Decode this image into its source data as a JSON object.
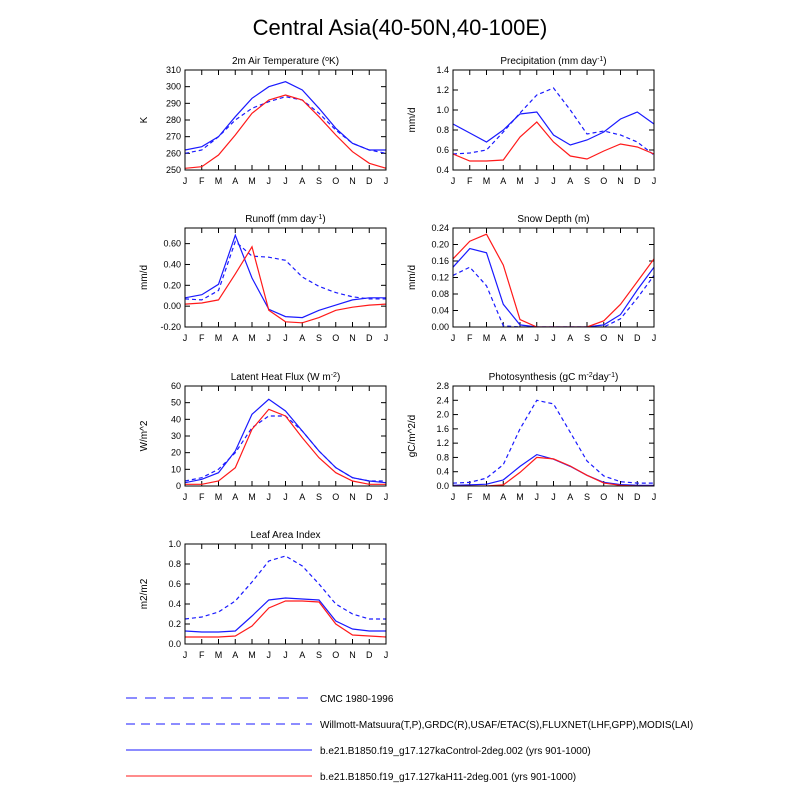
{
  "figure": {
    "title": "Central Asia(40-50N,40-100E)",
    "months": [
      "J",
      "F",
      "M",
      "A",
      "M",
      "J",
      "J",
      "A",
      "S",
      "O",
      "N",
      "D",
      "J"
    ]
  },
  "colors": {
    "blue": "#1a1aff",
    "red": "#ff1a1a",
    "dashed_blue": "#1a1aff"
  },
  "legend": [
    {
      "label": "CMC 1980-1996",
      "style": "dashed",
      "color": "#1a1aff"
    },
    {
      "label": "Willmott-Matsuura(T,P),GRDC(R),USAF/ETAC(S),FLUXNET(LHF,GPP),MODIS(LAI)",
      "style": "dashed",
      "color": "#1a1aff"
    },
    {
      "label": "b.e21.B1850.f19_g17.127kaControl-2deg.002 (yrs 901-1000)",
      "style": "solid",
      "color": "#1a1aff"
    },
    {
      "label": "b.e21.B1850.f19_g17.127kaH11-2deg.001 (yrs 901-1000)",
      "style": "solid",
      "color": "#ff1a1a"
    }
  ],
  "chart_data": [
    {
      "type": "line",
      "id": "temp",
      "title": "2m Air Temperature (°K)",
      "title_parts": {
        "pre": "2m Air Temperature (",
        "sup": "o",
        "post": "K)"
      },
      "ylabel": "K",
      "ylim": [
        250,
        310
      ],
      "yticks": [
        250,
        260,
        270,
        280,
        290,
        300,
        310
      ],
      "ytick_labels": [
        "250",
        "260",
        "270",
        "280",
        "290",
        "300",
        "310"
      ],
      "series": [
        {
          "name": "obs",
          "style": "dashed",
          "color": "#1a1aff",
          "values": [
            260,
            262,
            270,
            280,
            287,
            291,
            294,
            292,
            284,
            274,
            266,
            262,
            260
          ]
        },
        {
          "name": "control",
          "style": "solid",
          "color": "#1a1aff",
          "values": [
            262,
            264,
            270,
            282,
            293,
            300,
            303,
            298,
            287,
            275,
            266,
            262,
            262
          ]
        },
        {
          "name": "h11",
          "style": "solid",
          "color": "#ff1a1a",
          "values": [
            251,
            252,
            259,
            271,
            284,
            292,
            295,
            292,
            282,
            271,
            261,
            254,
            251
          ]
        }
      ]
    },
    {
      "type": "line",
      "id": "precip",
      "title": "Precipitation (mm day-1)",
      "title_parts": {
        "pre": "Precipitation (mm day",
        "sup": "-1",
        "post": ")"
      },
      "ylabel": "mm/d",
      "ylim": [
        0.4,
        1.4
      ],
      "yticks": [
        0.4,
        0.6,
        0.8,
        1.0,
        1.2,
        1.4
      ],
      "ytick_labels": [
        "0.4",
        "0.6",
        "0.8",
        "1.0",
        "1.2",
        "1.4"
      ],
      "series": [
        {
          "name": "obs",
          "style": "dashed",
          "color": "#1a1aff",
          "values": [
            0.56,
            0.57,
            0.6,
            0.78,
            0.97,
            1.15,
            1.22,
            1.0,
            0.76,
            0.79,
            0.75,
            0.68,
            0.55
          ]
        },
        {
          "name": "control",
          "style": "solid",
          "color": "#1a1aff",
          "values": [
            0.86,
            0.77,
            0.68,
            0.8,
            0.96,
            0.98,
            0.75,
            0.65,
            0.7,
            0.78,
            0.91,
            0.98,
            0.86
          ]
        },
        {
          "name": "h11",
          "style": "solid",
          "color": "#ff1a1a",
          "values": [
            0.56,
            0.49,
            0.49,
            0.5,
            0.73,
            0.88,
            0.68,
            0.54,
            0.51,
            0.59,
            0.66,
            0.63,
            0.56
          ]
        }
      ]
    },
    {
      "type": "line",
      "id": "runoff",
      "title": "Runoff (mm day-1)",
      "title_parts": {
        "pre": "Runoff (mm day",
        "sup": "-1",
        "post": ")"
      },
      "ylabel": "mm/d",
      "ylim": [
        -0.2,
        0.75
      ],
      "yticks": [
        -0.2,
        0.0,
        0.2,
        0.4,
        0.6
      ],
      "ytick_labels": [
        "-0.20",
        "0.00",
        "0.20",
        "0.40",
        "0.60"
      ],
      "series": [
        {
          "name": "obs",
          "style": "dashed",
          "color": "#1a1aff",
          "values": [
            0.07,
            0.06,
            0.15,
            0.62,
            0.48,
            0.47,
            0.44,
            0.28,
            0.19,
            0.13,
            0.09,
            0.07,
            0.07
          ]
        },
        {
          "name": "control",
          "style": "solid",
          "color": "#1a1aff",
          "values": [
            0.08,
            0.11,
            0.21,
            0.68,
            0.27,
            -0.03,
            -0.1,
            -0.11,
            -0.04,
            0.01,
            0.06,
            0.08,
            0.08
          ]
        },
        {
          "name": "h11",
          "style": "solid",
          "color": "#ff1a1a",
          "values": [
            0.02,
            0.03,
            0.06,
            0.31,
            0.57,
            -0.04,
            -0.15,
            -0.16,
            -0.11,
            -0.04,
            -0.01,
            0.01,
            0.02
          ]
        }
      ]
    },
    {
      "type": "line",
      "id": "snow",
      "title": "Snow Depth (m)",
      "title_parts": {
        "pre": "Snow Depth (m)",
        "sup": "",
        "post": ""
      },
      "ylabel": "mm/d",
      "ylim": [
        0.0,
        0.24
      ],
      "yticks": [
        0.0,
        0.04,
        0.08,
        0.12,
        0.16,
        0.2,
        0.24
      ],
      "ytick_labels": [
        "0.00",
        "0.04",
        "0.08",
        "0.12",
        "0.16",
        "0.20",
        "0.24"
      ],
      "series": [
        {
          "name": "obs",
          "style": "dashed",
          "color": "#1a1aff",
          "values": [
            0.125,
            0.145,
            0.1,
            0.003,
            0.0,
            0.0,
            0.0,
            0.0,
            0.0,
            0.0,
            0.02,
            0.07,
            0.125
          ]
        },
        {
          "name": "control",
          "style": "solid",
          "color": "#1a1aff",
          "values": [
            0.145,
            0.19,
            0.18,
            0.055,
            0.005,
            0.0,
            0.0,
            0.0,
            0.0,
            0.005,
            0.03,
            0.09,
            0.145
          ]
        },
        {
          "name": "h11",
          "style": "solid",
          "color": "#ff1a1a",
          "values": [
            0.165,
            0.208,
            0.225,
            0.15,
            0.018,
            0.0,
            0.0,
            0.0,
            0.0,
            0.015,
            0.055,
            0.11,
            0.165
          ]
        }
      ]
    },
    {
      "type": "line",
      "id": "lhf",
      "title": "Latent Heat Flux (W m-2)",
      "title_parts": {
        "pre": "Latent Heat Flux (W m",
        "sup": "-2",
        "post": ")"
      },
      "ylabel": "W/m^2",
      "ylim": [
        0,
        60
      ],
      "yticks": [
        0,
        10,
        20,
        30,
        40,
        50,
        60
      ],
      "ytick_labels": [
        "0",
        "10",
        "20",
        "30",
        "40",
        "50",
        "60"
      ],
      "series": [
        {
          "name": "obs",
          "style": "dashed",
          "color": "#1a1aff",
          "values": [
            3,
            5,
            10,
            20,
            35,
            42,
            42,
            33,
            21,
            11,
            5,
            3,
            3
          ]
        },
        {
          "name": "control",
          "style": "solid",
          "color": "#1a1aff",
          "values": [
            2,
            4,
            8,
            21,
            43,
            52,
            45,
            33,
            21,
            11,
            5,
            3,
            2
          ]
        },
        {
          "name": "h11",
          "style": "solid",
          "color": "#ff1a1a",
          "values": [
            1,
            1,
            3,
            11,
            34,
            46,
            42,
            29,
            17,
            8,
            3,
            1,
            1
          ]
        }
      ]
    },
    {
      "type": "line",
      "id": "gpp",
      "title": "Photosynthesis (gC m-2day-1)",
      "title_parts": {
        "pre": "Photosynthesis (gC m",
        "sup": "-2",
        "post": "day",
        "sup2": "-1",
        "post2": ")"
      },
      "ylabel": "gC/m^2/d",
      "ylim": [
        0.0,
        2.8
      ],
      "yticks": [
        0.0,
        0.4,
        0.8,
        1.2,
        1.6,
        2.0,
        2.4,
        2.8
      ],
      "ytick_labels": [
        "0.0",
        "0.4",
        "0.8",
        "1.2",
        "1.6",
        "2.0",
        "2.4",
        "2.8"
      ],
      "series": [
        {
          "name": "obs",
          "style": "dashed",
          "color": "#1a1aff",
          "values": [
            0.08,
            0.1,
            0.22,
            0.6,
            1.6,
            2.4,
            2.3,
            1.5,
            0.7,
            0.28,
            0.12,
            0.08,
            0.08
          ]
        },
        {
          "name": "control",
          "style": "solid",
          "color": "#1a1aff",
          "values": [
            0.02,
            0.03,
            0.05,
            0.17,
            0.55,
            0.88,
            0.75,
            0.55,
            0.3,
            0.1,
            0.04,
            0.02,
            0.02
          ]
        },
        {
          "name": "h11",
          "style": "solid",
          "color": "#ff1a1a",
          "values": [
            0.0,
            0.0,
            0.0,
            0.03,
            0.38,
            0.8,
            0.76,
            0.56,
            0.3,
            0.08,
            0.02,
            0.0,
            0.0
          ]
        }
      ]
    },
    {
      "type": "line",
      "id": "lai",
      "title": "Leaf Area Index",
      "title_parts": {
        "pre": "Leaf Area Index",
        "sup": "",
        "post": ""
      },
      "ylabel": "m2/m2",
      "ylim": [
        0.0,
        1.0
      ],
      "yticks": [
        0.0,
        0.2,
        0.4,
        0.6,
        0.8,
        1.0
      ],
      "ytick_labels": [
        "0.0",
        "0.2",
        "0.4",
        "0.6",
        "0.8",
        "1.0"
      ],
      "series": [
        {
          "name": "obs",
          "style": "dashed",
          "color": "#1a1aff",
          "values": [
            0.25,
            0.27,
            0.32,
            0.43,
            0.62,
            0.83,
            0.88,
            0.78,
            0.6,
            0.4,
            0.3,
            0.25,
            0.25
          ]
        },
        {
          "name": "control",
          "style": "solid",
          "color": "#1a1aff",
          "values": [
            0.13,
            0.12,
            0.12,
            0.13,
            0.28,
            0.44,
            0.46,
            0.45,
            0.44,
            0.23,
            0.15,
            0.13,
            0.13
          ]
        },
        {
          "name": "h11",
          "style": "solid",
          "color": "#ff1a1a",
          "values": [
            0.07,
            0.07,
            0.07,
            0.08,
            0.18,
            0.36,
            0.43,
            0.43,
            0.42,
            0.2,
            0.09,
            0.08,
            0.07
          ]
        }
      ]
    }
  ]
}
